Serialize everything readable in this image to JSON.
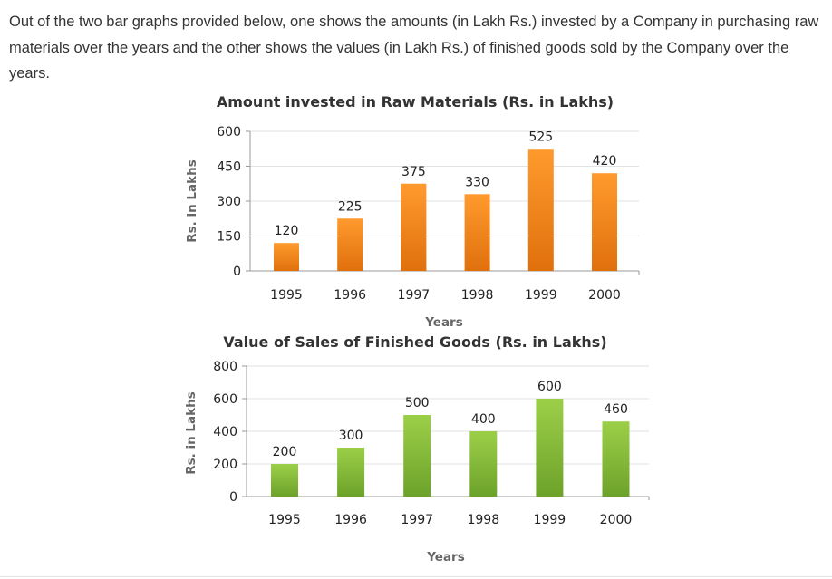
{
  "question": {
    "text": "Out of the two bar graphs provided below, one shows the amounts (in Lakh Rs.) invested by a Company in purchasing raw materials over the years and the other shows the values (in Lakh Rs.) of finished goods sold by the Company over the years."
  },
  "colors": {
    "raw": "#f28a1e",
    "sales": "#88bd3a",
    "grid": "#e2e2e2",
    "axis": "#999999"
  },
  "chart_data": [
    {
      "type": "bar",
      "title": "Amount invested in Raw Materials (Rs. in Lakhs)",
      "xlabel": "Years",
      "ylabel": "Rs. in Lakhs",
      "categories": [
        "1995",
        "1996",
        "1997",
        "1998",
        "1999",
        "2000"
      ],
      "values": [
        120,
        225,
        375,
        330,
        525,
        420
      ],
      "ylim": [
        0,
        600
      ],
      "yticks": [
        0,
        150,
        300,
        450,
        600
      ],
      "grid": true,
      "data_labels": true
    },
    {
      "type": "bar",
      "title": "Value of Sales of Finished Goods (Rs. in Lakhs)",
      "xlabel": "Years",
      "ylabel": "Rs. in Lakhs",
      "categories": [
        "1995",
        "1996",
        "1997",
        "1998",
        "1999",
        "2000"
      ],
      "values": [
        200,
        300,
        500,
        400,
        600,
        460
      ],
      "ylim": [
        0,
        800
      ],
      "yticks": [
        0,
        200,
        400,
        600,
        800
      ],
      "grid": true,
      "data_labels": true
    }
  ]
}
